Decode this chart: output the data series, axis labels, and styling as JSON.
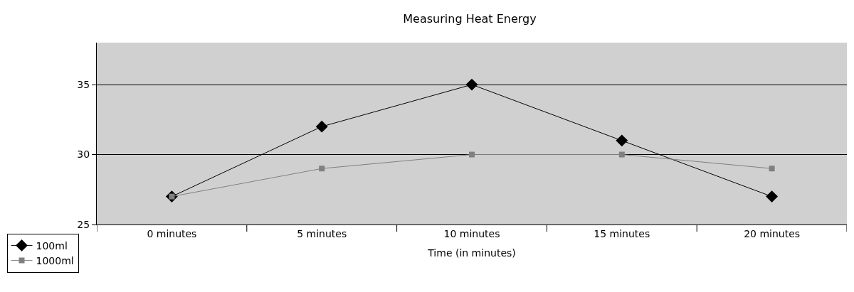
{
  "chart_data": {
    "type": "line",
    "title": "Measuring Heat Energy",
    "xlabel": "Time (in minutes)",
    "categories": [
      "0 minutes",
      "5 minutes",
      "10 minutes",
      "15 minutes",
      "20 minutes"
    ],
    "series": [
      {
        "name": "100ml",
        "color": "#000000",
        "marker": "diamond",
        "values": [
          27,
          32,
          35,
          31,
          27
        ]
      },
      {
        "name": "1000ml",
        "color": "#808080",
        "marker": "square",
        "values": [
          27,
          29,
          30,
          30,
          29
        ]
      }
    ],
    "ylim": [
      25,
      38
    ],
    "yticks": [
      25,
      30,
      35
    ],
    "grid": "y",
    "legend": "bottom left",
    "line_style": "solid"
  }
}
